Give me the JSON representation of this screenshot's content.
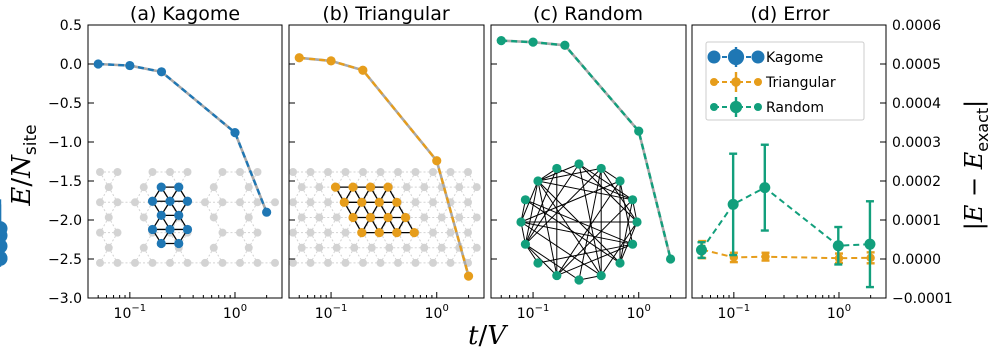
{
  "figure": {
    "ylabel": "E/N_site",
    "xlabel": "t/V",
    "right_ylabel": "|E − E_exact|"
  },
  "colors": {
    "kagome": "#1f77b4",
    "triangular": "#e69d1b",
    "random": "#129f7c",
    "lattice_gray": "#d3d3d3",
    "edge_black": "#000000"
  },
  "chart_data": [
    {
      "type": "line",
      "title": "(a) Kagome",
      "x_scale": "log",
      "xlim": [
        0.04,
        2.8
      ],
      "ylim": [
        -3.0,
        0.5
      ],
      "yticks": [
        0.5,
        0.0,
        -0.5,
        -1.0,
        -1.5,
        -2.0,
        -2.5,
        -3.0
      ],
      "ytick_labels": [
        "0.5",
        "0.0",
        "−0.5",
        "−1.0",
        "−1.5",
        "−2.0",
        "−2.5",
        "−3.0"
      ],
      "xticks": [
        0.1,
        1
      ],
      "xtick_labels": [
        "10",
        "10"
      ],
      "xtick_exponents": [
        "−1",
        "0"
      ],
      "series": [
        {
          "x": [
            0.05,
            0.1,
            0.2,
            1.0,
            2.0
          ],
          "y": [
            0.0,
            -0.02,
            -0.1,
            -0.88,
            -1.9
          ],
          "style": "dashed-with-markers"
        }
      ],
      "inset": "kagome lattice cluster"
    },
    {
      "type": "line",
      "title": "(b) Triangular",
      "x_scale": "log",
      "xlim": [
        0.04,
        2.8
      ],
      "ylim": [
        -3.0,
        0.5
      ],
      "xticks": [
        0.1,
        1
      ],
      "xtick_labels": [
        "10",
        "10"
      ],
      "xtick_exponents": [
        "−1",
        "0"
      ],
      "series": [
        {
          "x": [
            0.05,
            0.1,
            0.2,
            1.0,
            2.0
          ],
          "y": [
            0.08,
            0.04,
            -0.08,
            -1.24,
            -2.72
          ],
          "style": "dashed-with-markers"
        }
      ],
      "inset": "triangular lattice cluster"
    },
    {
      "type": "line",
      "title": "(c) Random",
      "x_scale": "log",
      "xlim": [
        0.04,
        2.8
      ],
      "ylim": [
        -3.0,
        0.5
      ],
      "xticks": [
        0.1,
        1
      ],
      "xtick_labels": [
        "10",
        "10"
      ],
      "xtick_exponents": [
        "−1",
        "0"
      ],
      "series": [
        {
          "x": [
            0.05,
            0.1,
            0.2,
            1.0,
            2.0
          ],
          "y": [
            0.3,
            0.28,
            0.24,
            -0.86,
            -2.5
          ],
          "style": "dashed-with-markers"
        }
      ],
      "inset": "random graph, 16 nodes"
    },
    {
      "type": "line",
      "title": "(d) Error",
      "x_scale": "log",
      "xlim": [
        0.04,
        2.8
      ],
      "ylim": [
        -0.0001,
        0.0006
      ],
      "yaxis_side": "right",
      "yticks": [
        0.0006,
        0.0005,
        0.0004,
        0.0003,
        0.0002,
        0.0001,
        0.0,
        -0.0001
      ],
      "ytick_labels": [
        "0.0006",
        "0.0005",
        "0.0004",
        "0.0003",
        "0.0002",
        "0.0001",
        "0.0000",
        "−0.0001"
      ],
      "xticks": [
        0.1,
        1
      ],
      "xtick_labels": [
        "10",
        "10"
      ],
      "xtick_exponents": [
        "−1",
        "0"
      ],
      "legend": {
        "position": "top-right",
        "entries": [
          "Kagome",
          "Triangular",
          "Random"
        ]
      },
      "series": [
        {
          "name": "Kagome",
          "x": [
            0.05,
            0.1,
            0.2,
            1.0,
            2.0
          ],
          "y": [
            6e-05,
            7.8e-05,
            3.3e-05,
            1.5e-06,
            2e-06
          ],
          "yerr": [
            8e-05,
            7.5e-05,
            2.8e-05,
            1.8e-05,
            1.8e-05
          ]
        },
        {
          "name": "Triangular",
          "x": [
            0.05,
            0.1,
            0.2,
            1.0,
            2.0
          ],
          "y": [
            2.4e-05,
            4e-06,
            6e-06,
            2e-06,
            3e-06
          ],
          "yerr": [
            2.2e-05,
            1.2e-05,
            1e-05,
            1.2e-05,
            1.4e-05
          ]
        },
        {
          "name": "Random",
          "x": [
            0.05,
            0.1,
            0.2,
            1.0,
            2.0
          ],
          "y": [
            2.3e-05,
            0.00014,
            0.000183,
            3.4e-05,
            3.8e-05
          ],
          "yerr": [
            2e-05,
            0.00013,
            0.00011,
            4.8e-05,
            0.00011
          ]
        }
      ]
    }
  ]
}
